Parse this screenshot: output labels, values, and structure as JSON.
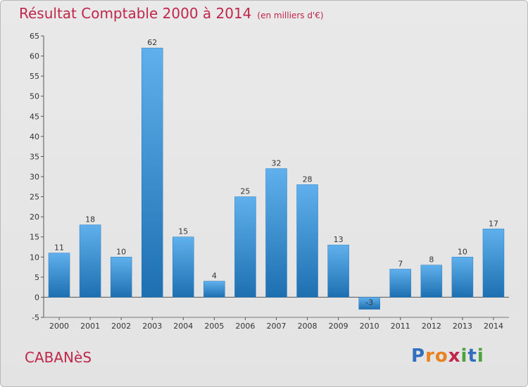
{
  "title": "Résultat Comptable 2000 à 2014",
  "subtitle": "(en milliers d'€)",
  "commune": "CABANèS",
  "logo": {
    "text": "Proxiti",
    "letters": [
      "P",
      "r",
      "o",
      "x",
      "i",
      "t",
      "i"
    ],
    "colors": [
      "#2f6fbd",
      "#e8821e",
      "#e8821e",
      "#c0264a",
      "#4aa33c",
      "#2f6fbd",
      "#4aa33c"
    ]
  },
  "colors": {
    "title": "#c0264a",
    "bar_top": "#5fb0ec",
    "bar_bottom": "#1e6fb0"
  },
  "chart_data": {
    "type": "bar",
    "categories": [
      "2000",
      "2001",
      "2002",
      "2003",
      "2004",
      "2005",
      "2006",
      "2007",
      "2008",
      "2009",
      "2010",
      "2011",
      "2012",
      "2013",
      "2014"
    ],
    "values": [
      11,
      18,
      10,
      62,
      15,
      4,
      25,
      32,
      28,
      13,
      -3,
      7,
      8,
      10,
      17
    ],
    "ylim": [
      -5,
      65
    ],
    "yticks": [
      -5,
      0,
      5,
      10,
      15,
      20,
      25,
      30,
      35,
      40,
      45,
      50,
      55,
      60,
      65
    ],
    "grid": false,
    "xlabel": "",
    "ylabel": ""
  }
}
